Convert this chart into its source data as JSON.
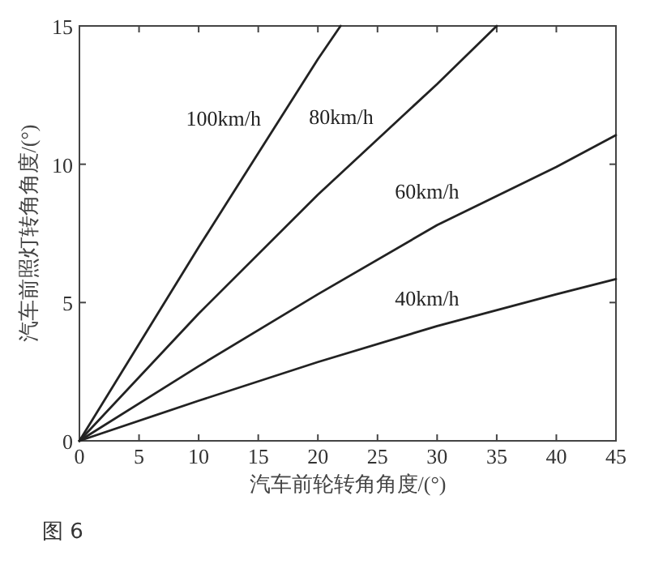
{
  "chart_data": {
    "type": "line",
    "xlabel": "汽车前轮转角角度/(°)",
    "ylabel": "汽车前照灯转角角度/(°)",
    "xlim": [
      0,
      45
    ],
    "ylim": [
      0,
      15
    ],
    "xticks": [
      0,
      5,
      10,
      15,
      20,
      25,
      30,
      35,
      40,
      45
    ],
    "yticks": [
      0,
      5,
      10,
      15
    ],
    "grid": false,
    "marker": "none",
    "line_style": "solid",
    "series": [
      {
        "name": "100km/h",
        "color": "#222222",
        "x": [
          0,
          5,
          10,
          15,
          20,
          21.9
        ],
        "values": [
          0,
          3.5,
          7.0,
          10.4,
          13.8,
          15
        ]
      },
      {
        "name": "80km/h",
        "color": "#222222",
        "x": [
          0,
          10,
          20,
          30,
          35
        ],
        "values": [
          0,
          4.6,
          8.9,
          12.9,
          15
        ]
      },
      {
        "name": "60km/h",
        "color": "#222222",
        "x": [
          0,
          10,
          20,
          30,
          40,
          45
        ],
        "values": [
          0,
          2.7,
          5.3,
          7.8,
          9.9,
          11.05
        ]
      },
      {
        "name": "40km/h",
        "color": "#222222",
        "x": [
          0,
          10,
          20,
          30,
          40,
          45
        ],
        "values": [
          0,
          1.45,
          2.85,
          4.15,
          5.3,
          5.85
        ]
      }
    ],
    "annotations": [
      "图 6"
    ]
  }
}
